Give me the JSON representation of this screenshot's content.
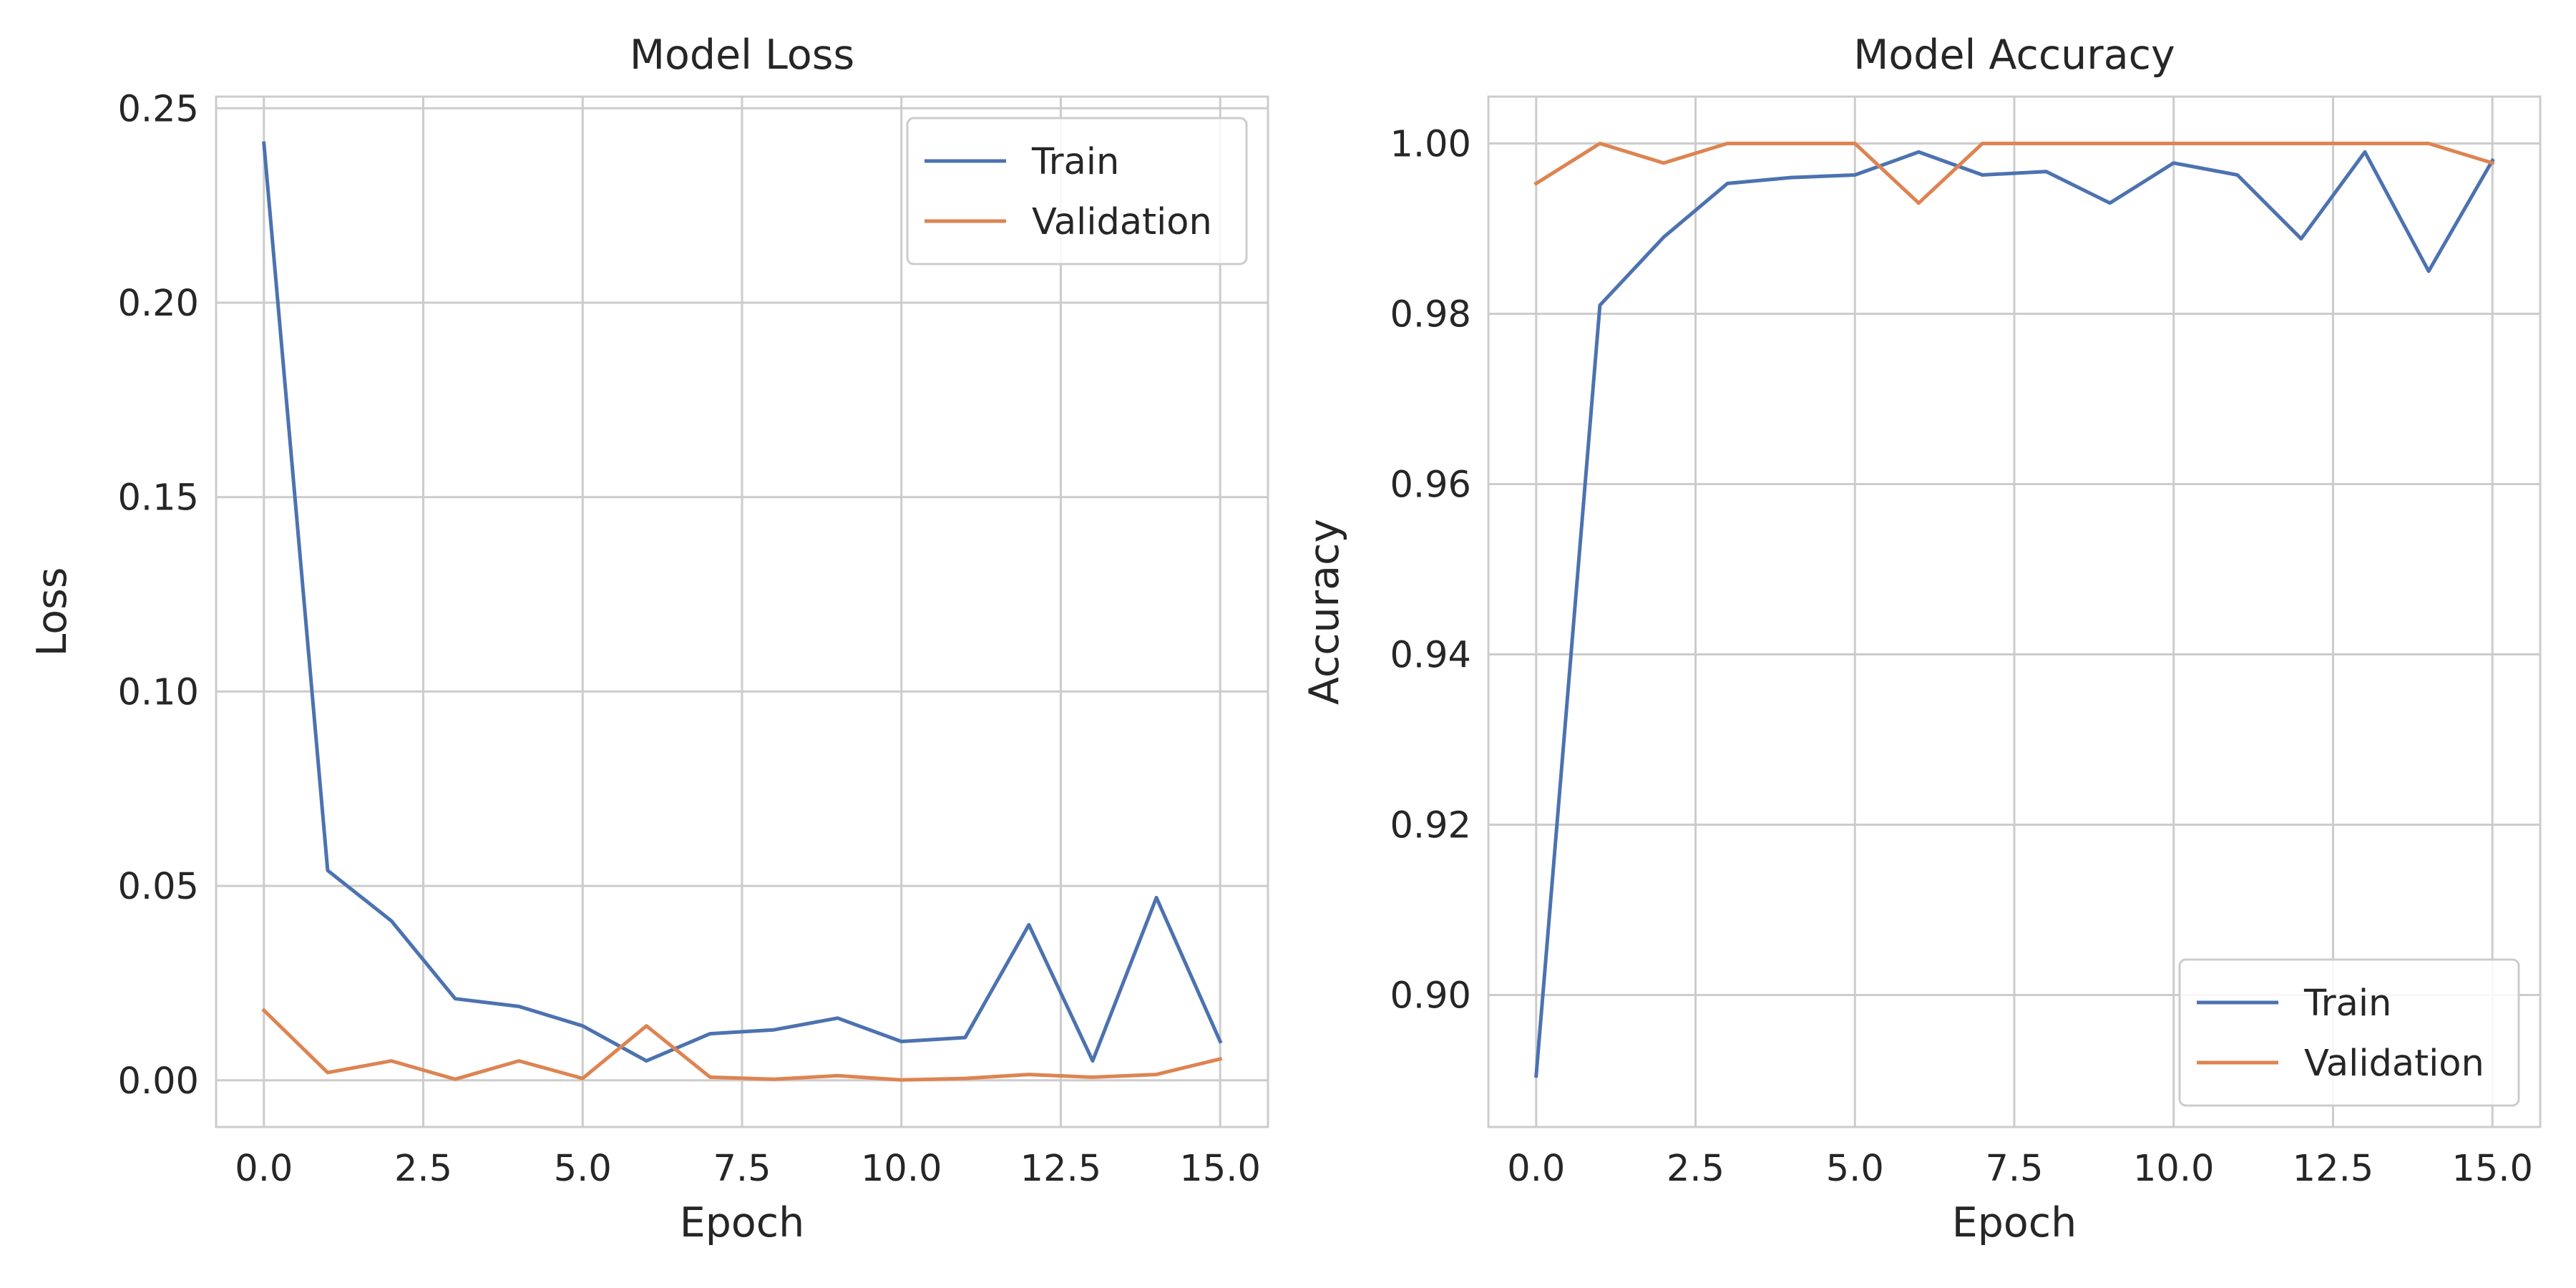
{
  "colors": {
    "train": "#4c72b0",
    "validation": "#dd8452",
    "grid": "#cccccc",
    "spine": "#cccccc",
    "text": "#262626"
  },
  "chart_data": [
    {
      "type": "line",
      "title": "Model Loss",
      "xlabel": "Epoch",
      "ylabel": "Loss",
      "xlim": [
        -0.75,
        15.75
      ],
      "ylim": [
        -0.012,
        0.253
      ],
      "xticks": [
        0.0,
        2.5,
        5.0,
        7.5,
        10.0,
        12.5,
        15.0
      ],
      "xtick_labels": [
        "0.0",
        "2.5",
        "5.0",
        "7.5",
        "10.0",
        "12.5",
        "15.0"
      ],
      "yticks": [
        0.0,
        0.05,
        0.1,
        0.15,
        0.2,
        0.25
      ],
      "ytick_labels": [
        "0.00",
        "0.05",
        "0.10",
        "0.15",
        "0.20",
        "0.25"
      ],
      "grid": true,
      "legend_position": "top-right",
      "x": [
        0,
        1,
        2,
        3,
        4,
        5,
        6,
        7,
        8,
        9,
        10,
        11,
        12,
        13,
        14,
        15
      ],
      "series": [
        {
          "name": "Train",
          "color": "#4c72b0",
          "values": [
            0.241,
            0.054,
            0.041,
            0.021,
            0.019,
            0.014,
            0.005,
            0.012,
            0.013,
            0.016,
            0.01,
            0.011,
            0.04,
            0.005,
            0.047,
            0.01
          ]
        },
        {
          "name": "Validation",
          "color": "#dd8452",
          "values": [
            0.018,
            0.002,
            0.005,
            0.0003,
            0.005,
            0.0005,
            0.014,
            0.0008,
            0.0003,
            0.0012,
            0.0001,
            0.0005,
            0.0015,
            0.0008,
            0.0015,
            0.0055
          ]
        }
      ]
    },
    {
      "type": "line",
      "title": "Model Accuracy",
      "xlabel": "Epoch",
      "ylabel": "Accuracy",
      "xlim": [
        -0.75,
        15.75
      ],
      "ylim": [
        0.8845,
        1.0055
      ],
      "xticks": [
        0.0,
        2.5,
        5.0,
        7.5,
        10.0,
        12.5,
        15.0
      ],
      "xtick_labels": [
        "0.0",
        "2.5",
        "5.0",
        "7.5",
        "10.0",
        "12.5",
        "15.0"
      ],
      "yticks": [
        0.9,
        0.92,
        0.94,
        0.96,
        0.98,
        1.0
      ],
      "ytick_labels": [
        "0.90",
        "0.92",
        "0.94",
        "0.96",
        "0.98",
        "1.00"
      ],
      "grid": true,
      "legend_position": "bottom-right",
      "x": [
        0,
        1,
        2,
        3,
        4,
        5,
        6,
        7,
        8,
        9,
        10,
        11,
        12,
        13,
        14,
        15
      ],
      "series": [
        {
          "name": "Train",
          "color": "#4c72b0",
          "values": [
            0.8905,
            0.981,
            0.989,
            0.9953,
            0.996,
            0.9963,
            0.999,
            0.9963,
            0.9967,
            0.993,
            0.9977,
            0.9963,
            0.9888,
            0.999,
            0.985,
            0.998
          ]
        },
        {
          "name": "Validation",
          "color": "#dd8452",
          "values": [
            0.9953,
            1.0,
            0.9977,
            1.0,
            1.0,
            1.0,
            0.993,
            1.0,
            1.0,
            1.0,
            1.0,
            1.0,
            1.0,
            1.0,
            1.0,
            0.9977
          ]
        }
      ]
    }
  ]
}
